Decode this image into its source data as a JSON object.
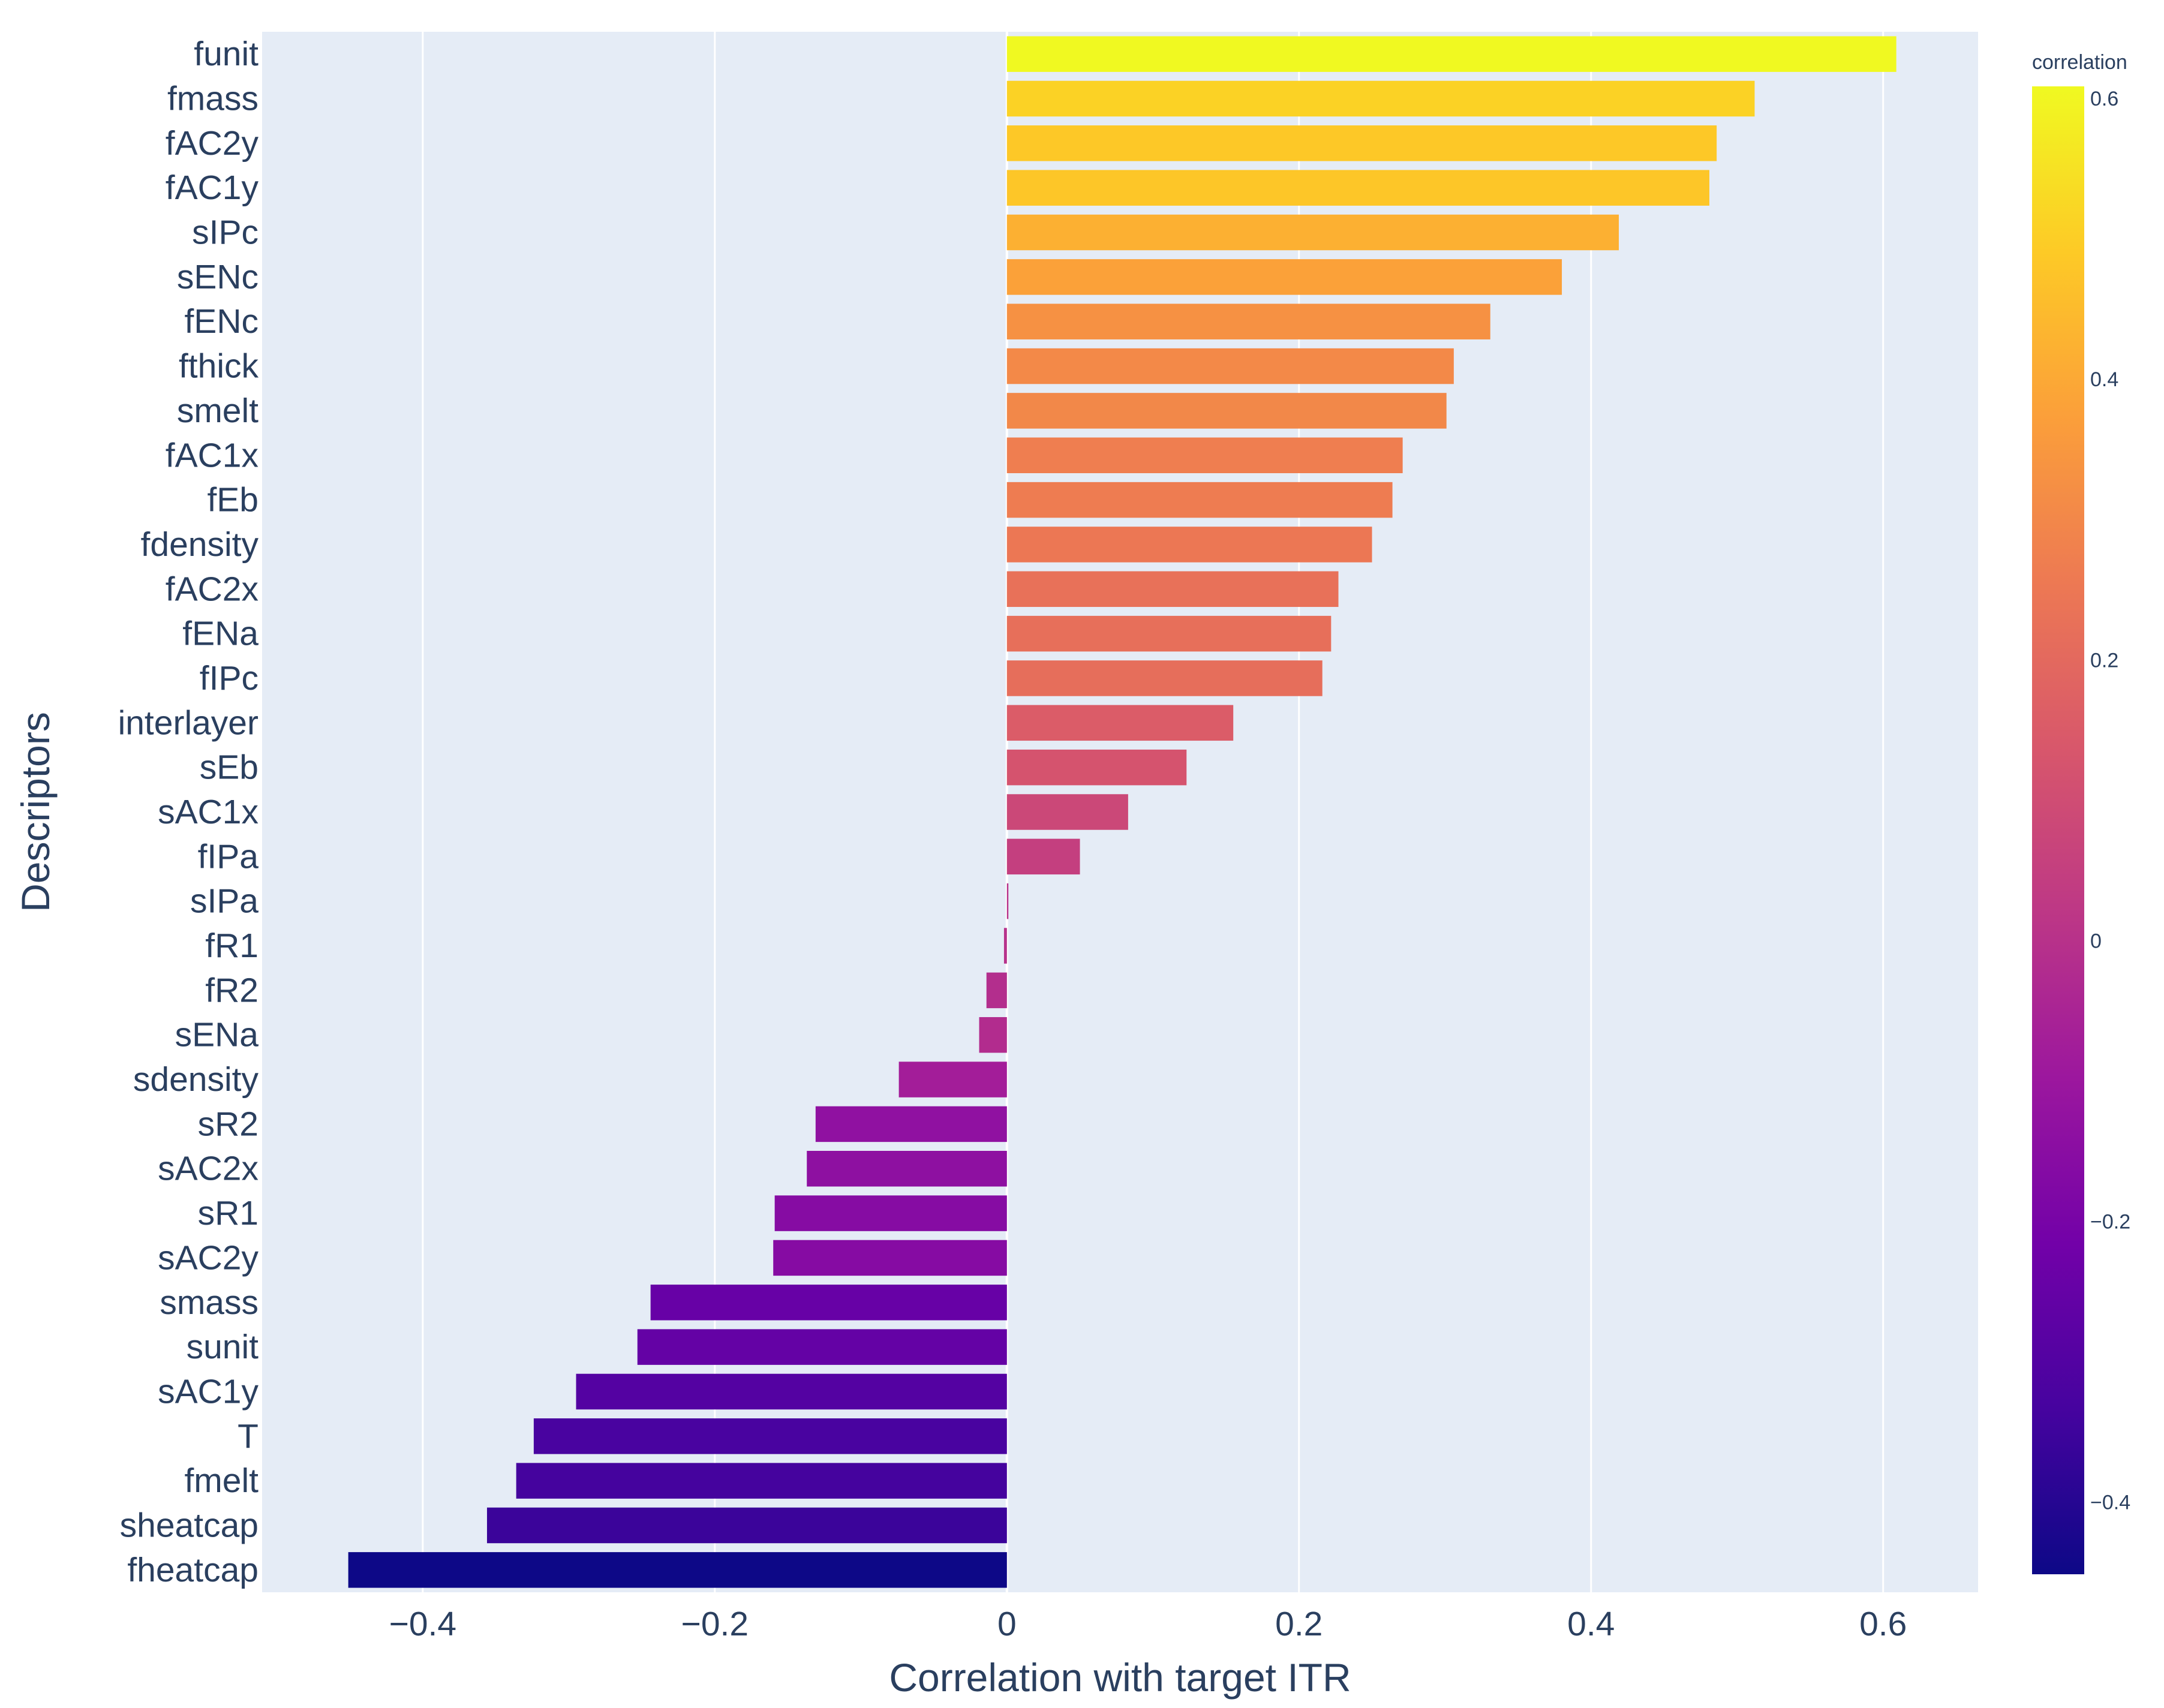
{
  "chart_data": {
    "type": "bar",
    "orientation": "horizontal",
    "title": "",
    "xlabel": "Correlation with target ITR",
    "ylabel": "Descriptors",
    "xlim": [
      -0.51,
      0.665
    ],
    "x_ticks": [
      -0.4,
      -0.2,
      0,
      0.2,
      0.4,
      0.6
    ],
    "x_tick_labels": [
      "−0.4",
      "−0.2",
      "0",
      "0.2",
      "0.4",
      "0.6"
    ],
    "grid": true,
    "plot_background": "#e5ecf6",
    "grid_color": "#ffffff",
    "categories": [
      "funit",
      "fmass",
      "fAC2y",
      "fAC1y",
      "sIPc",
      "sENc",
      "fENc",
      "fthick",
      "smelt",
      "fAC1x",
      "fEb",
      "fdensity",
      "fAC2x",
      "fENa",
      "fIPc",
      "interlayer",
      "sEb",
      "sAC1x",
      "fIPa",
      "sIPa",
      "fR1",
      "fR2",
      "sENa",
      "sdensity",
      "sR2",
      "sAC2x",
      "sR1",
      "sAC2y",
      "smass",
      "sunit",
      "sAC1y",
      "T",
      "fmelt",
      "sheatcap",
      "fheatcap"
    ],
    "values": [
      0.609,
      0.512,
      0.486,
      0.481,
      0.419,
      0.38,
      0.331,
      0.306,
      0.301,
      0.271,
      0.264,
      0.25,
      0.227,
      0.222,
      0.216,
      0.155,
      0.123,
      0.083,
      0.05,
      0.001,
      -0.002,
      -0.014,
      -0.019,
      -0.074,
      -0.131,
      -0.137,
      -0.159,
      -0.16,
      -0.244,
      -0.253,
      -0.295,
      -0.324,
      -0.336,
      -0.356,
      -0.451
    ],
    "colorbar": {
      "title": "correlation",
      "range": [
        -0.451,
        0.609
      ],
      "ticks": [
        -0.4,
        -0.2,
        0,
        0.2,
        0.4,
        0.6
      ],
      "tick_labels": [
        "−0.4",
        "−0.2",
        "0",
        "0.2",
        "0.4",
        "0.6"
      ],
      "colorscale": [
        "#0d0887",
        "#46039f",
        "#7201a8",
        "#9c179e",
        "#bd3786",
        "#d8576b",
        "#ed7953",
        "#fb9f3a",
        "#fdca26",
        "#f0f921"
      ]
    }
  }
}
